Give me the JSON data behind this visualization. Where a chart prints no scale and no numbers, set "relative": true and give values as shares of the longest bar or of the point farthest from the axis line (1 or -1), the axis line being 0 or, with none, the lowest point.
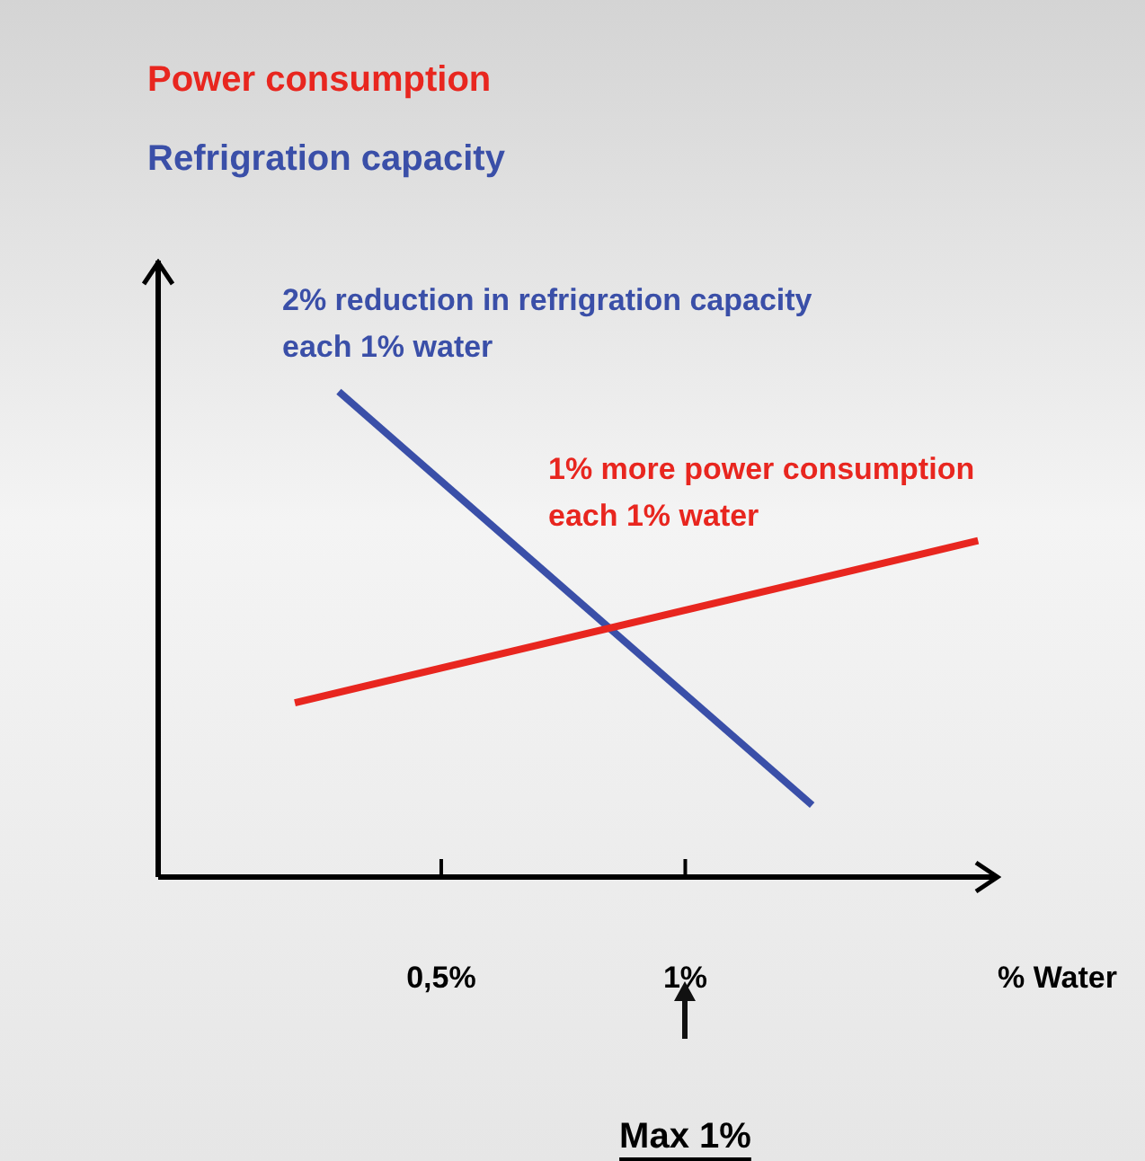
{
  "chart_data": {
    "type": "line",
    "relative": true,
    "legend": "top left",
    "tick_labels": "x",
    "marker": "none",
    "line_style": "solid",
    "xlabel": "% Water",
    "xlim": [
      -0.08,
      1.64
    ],
    "xticks": [
      {
        "value": 0.5,
        "label": "0,5%"
      },
      {
        "value": 1,
        "label": "1%"
      }
    ],
    "series": [
      {
        "name": "Power consumption",
        "color": "#e8261f",
        "x": [
          0.2,
          1.6
        ],
        "values": [
          0.359,
          0.693
        ]
      },
      {
        "name": "Refrigration capacity",
        "color": "#3a4fa8",
        "x": [
          0.29,
          1.26
        ],
        "values": [
          1,
          0.148
        ]
      }
    ],
    "annotations": [
      "2% reduction in refrigration capacity\neach 1% water",
      "1% more power consumption\neach 1% water",
      "Max 1%"
    ]
  }
}
